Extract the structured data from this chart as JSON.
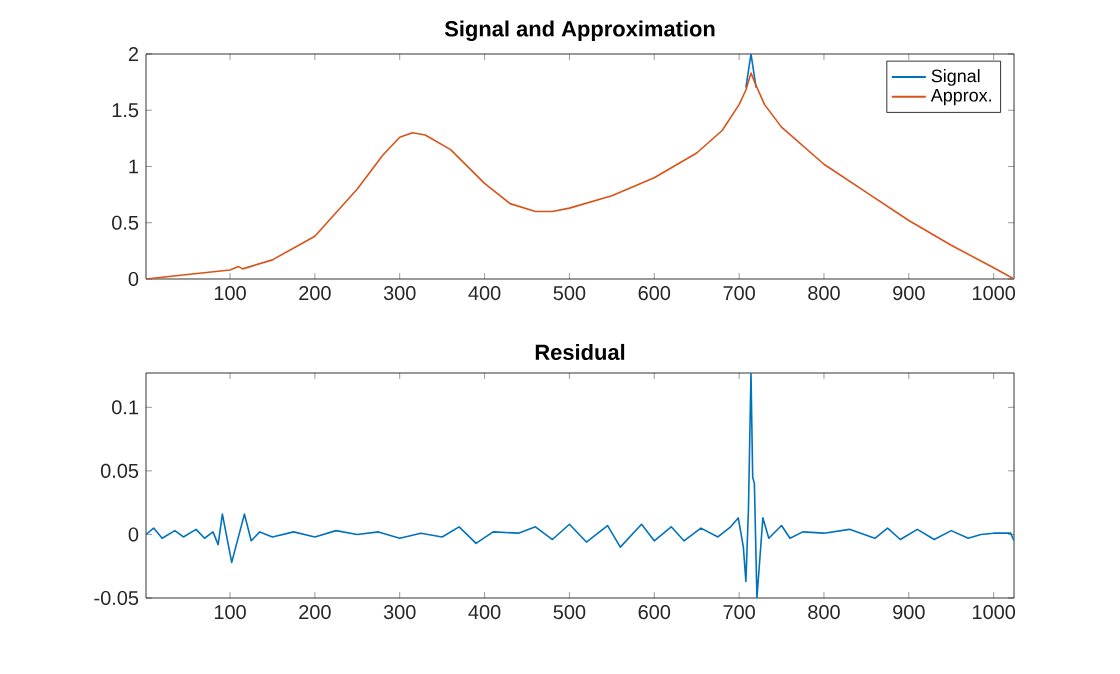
{
  "chart_data": [
    {
      "type": "line",
      "title": "Signal and Approximation",
      "legend": "top right",
      "xlim": [
        1,
        1024
      ],
      "ylim": [
        0,
        2
      ],
      "xticks": [
        100,
        200,
        300,
        400,
        500,
        600,
        700,
        800,
        900,
        1000
      ],
      "yticks": [
        0,
        0.5,
        1,
        1.5,
        2
      ],
      "series": [
        {
          "name": "Signal",
          "color": "#0072bd",
          "x": [
            708,
            714,
            720
          ],
          "values": [
            1.7,
            2.0,
            1.7
          ]
        },
        {
          "name": "Approx.",
          "color": "#d95319",
          "x": [
            1,
            50,
            100,
            110,
            115,
            150,
            200,
            250,
            280,
            300,
            315,
            330,
            360,
            400,
            430,
            460,
            480,
            500,
            550,
            600,
            650,
            680,
            700,
            708,
            714,
            720,
            730,
            750,
            800,
            850,
            900,
            950,
            1000,
            1024
          ],
          "values": [
            0,
            0.04,
            0.08,
            0.11,
            0.09,
            0.17,
            0.38,
            0.8,
            1.1,
            1.26,
            1.3,
            1.28,
            1.15,
            0.85,
            0.67,
            0.6,
            0.6,
            0.63,
            0.74,
            0.9,
            1.12,
            1.32,
            1.55,
            1.68,
            1.83,
            1.72,
            1.55,
            1.35,
            1.02,
            0.77,
            0.52,
            0.3,
            0.1,
            0
          ]
        }
      ]
    },
    {
      "type": "line",
      "title": "Residual",
      "xlim": [
        1,
        1024
      ],
      "ylim": [
        -0.05,
        0.127
      ],
      "xticks": [
        100,
        200,
        300,
        400,
        500,
        600,
        700,
        800,
        900,
        1000
      ],
      "yticks": [
        -0.05,
        0,
        0.05,
        0.1
      ],
      "series": [
        {
          "color": "#0072bd",
          "x": [
            1,
            10,
            20,
            35,
            45,
            60,
            70,
            80,
            86,
            91,
            102,
            117,
            125,
            135,
            150,
            175,
            200,
            225,
            250,
            275,
            300,
            325,
            350,
            370,
            390,
            410,
            440,
            460,
            480,
            500,
            520,
            545,
            560,
            585,
            600,
            620,
            635,
            655,
            675,
            690,
            699,
            705,
            708,
            711,
            714,
            716,
            718,
            721,
            728,
            735,
            750,
            760,
            775,
            800,
            830,
            860,
            875,
            890,
            910,
            930,
            950,
            970,
            985,
            1000,
            1020,
            1024
          ],
          "values": [
            0,
            0.005,
            -0.003,
            0.003,
            -0.002,
            0.004,
            -0.003,
            0.002,
            -0.008,
            0.016,
            -0.022,
            0.016,
            -0.005,
            0.002,
            -0.002,
            0.002,
            -0.002,
            0.003,
            0,
            0.002,
            -0.003,
            0.001,
            -0.002,
            0.006,
            -0.007,
            0.002,
            0.001,
            0.006,
            -0.004,
            0.008,
            -0.006,
            0.007,
            -0.01,
            0.008,
            -0.005,
            0.006,
            -0.005,
            0.005,
            -0.002,
            0.006,
            0.013,
            -0.01,
            -0.037,
            0.02,
            0.127,
            0.045,
            0.04,
            -0.05,
            0.013,
            -0.003,
            0.007,
            -0.003,
            0.002,
            0.001,
            0.004,
            -0.003,
            0.005,
            -0.004,
            0.004,
            -0.004,
            0.003,
            -0.003,
            0,
            0.001,
            0.001,
            -0.005
          ]
        }
      ]
    }
  ]
}
